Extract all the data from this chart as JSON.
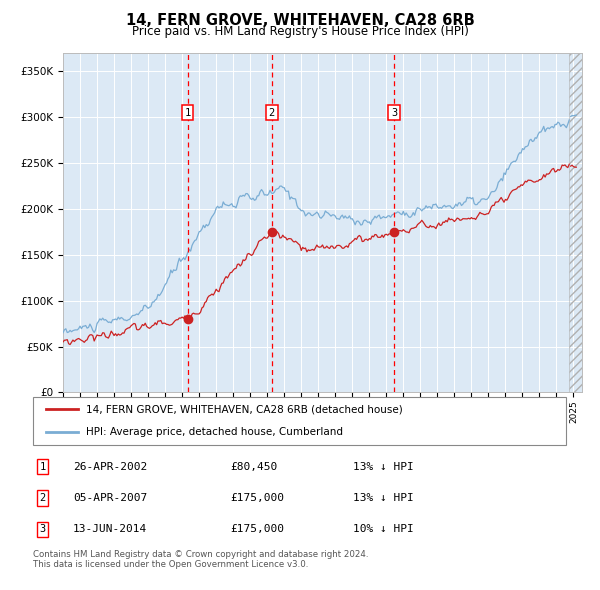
{
  "title": "14, FERN GROVE, WHITEHAVEN, CA28 6RB",
  "subtitle": "Price paid vs. HM Land Registry's House Price Index (HPI)",
  "hpi_color": "#7aadd4",
  "price_color": "#cc2222",
  "plot_bg_color": "#dce9f5",
  "legend_line1": "14, FERN GROVE, WHITEHAVEN, CA28 6RB (detached house)",
  "legend_line2": "HPI: Average price, detached house, Cumberland",
  "transactions": [
    {
      "num": 1,
      "date": "26-APR-2002",
      "price": 80450,
      "pct": "13% ↓ HPI",
      "x_year": 2002.32
    },
    {
      "num": 2,
      "date": "05-APR-2007",
      "price": 175000,
      "pct": "13% ↓ HPI",
      "x_year": 2007.27
    },
    {
      "num": 3,
      "date": "13-JUN-2014",
      "price": 175000,
      "pct": "10% ↓ HPI",
      "x_year": 2014.45
    }
  ],
  "footer": "Contains HM Land Registry data © Crown copyright and database right 2024.\nThis data is licensed under the Open Government Licence v3.0.",
  "ylim": [
    0,
    370000
  ],
  "yticks": [
    0,
    50000,
    100000,
    150000,
    200000,
    250000,
    300000,
    350000
  ],
  "xlim_start": 1995.0,
  "xlim_end": 2025.5,
  "hatch_start": 2024.75
}
